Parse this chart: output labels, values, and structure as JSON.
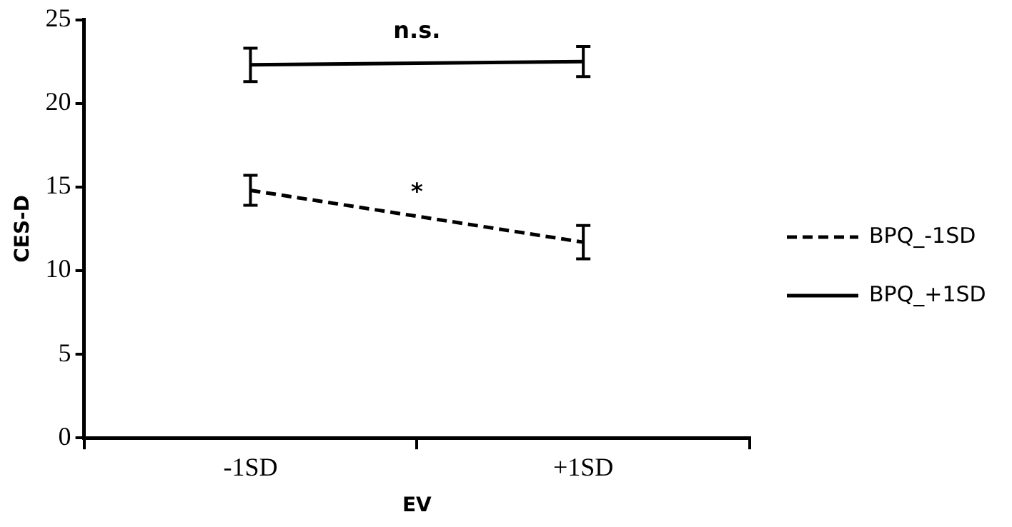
{
  "chart_data": {
    "type": "line",
    "xlabel": "EV",
    "ylabel": "CES-D",
    "categories": [
      "-1SD",
      "+1SD"
    ],
    "series": [
      {
        "name": "BPQ_-1SD",
        "color": "#000000",
        "line_style": "dashed",
        "values": [
          14.8,
          11.7
        ],
        "errors": [
          0.9,
          1.0
        ]
      },
      {
        "name": "BPQ_+1SD",
        "color": "#000000",
        "line_style": "solid",
        "values": [
          22.3,
          22.5
        ],
        "errors": [
          1.0,
          0.9
        ]
      }
    ],
    "annotations": [
      "*",
      "n.s."
    ],
    "ylim": [
      0,
      25
    ],
    "yticks": [
      0,
      5,
      10,
      15,
      20,
      25
    ],
    "grid": false,
    "legend": "right",
    "marker": "none"
  }
}
